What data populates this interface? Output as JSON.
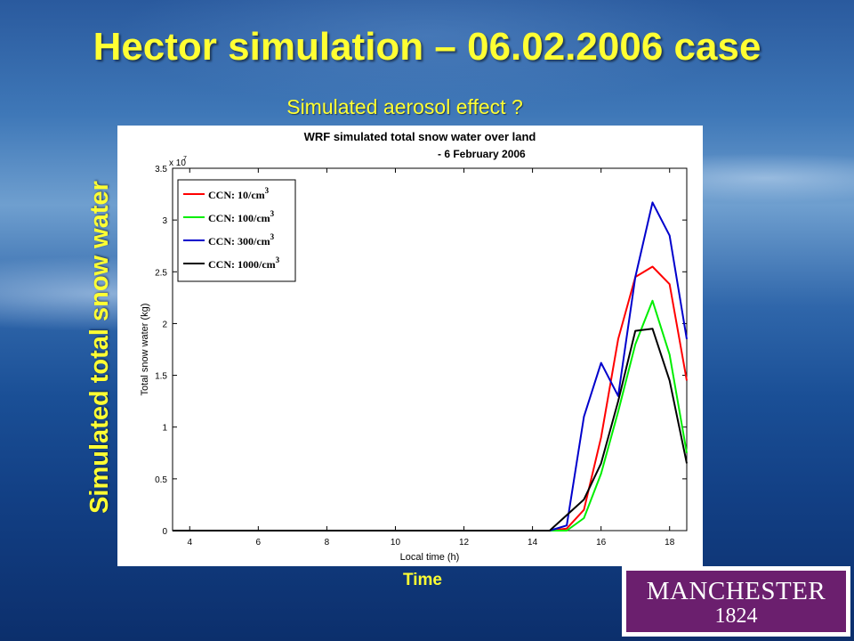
{
  "slide": {
    "title": "Hector simulation – 06.02.2006 case",
    "subtitle": "Simulated aerosol effect ?",
    "ylabel": "Simulated total snow water",
    "xlabel": "Time"
  },
  "logo": {
    "name": "MANCHESTER",
    "year": "1824"
  },
  "chart_data": {
    "type": "line",
    "title": "WRF simulated total snow water over land",
    "subtitle": "- 6 February 2006",
    "xlabel": "Local time (h)",
    "ylabel": "Total snow water (kg)",
    "y_multiplier": "x 10",
    "y_multiplier_exponent": "7",
    "xlim": [
      3.5,
      18.5
    ],
    "ylim": [
      0,
      3.5
    ],
    "xticks": [
      4,
      6,
      8,
      10,
      12,
      14,
      16,
      18
    ],
    "yticks": [
      0,
      0.5,
      1,
      1.5,
      2,
      2.5,
      3,
      3.5
    ],
    "grid": false,
    "legend_position": "top-left",
    "series": [
      {
        "name": "CCN: 10/cm",
        "exponent": "3",
        "color": "#ff0000",
        "x": [
          3.5,
          14.5,
          15,
          15.5,
          16,
          16.5,
          17,
          17.5,
          18,
          18.5
        ],
        "y": [
          0,
          0,
          0.02,
          0.2,
          0.9,
          1.85,
          2.45,
          2.55,
          2.38,
          1.45
        ]
      },
      {
        "name": "CCN: 100/cm",
        "exponent": "3",
        "color": "#00ee00",
        "x": [
          3.5,
          15,
          15.5,
          16,
          16.5,
          17,
          17.5,
          18,
          18.5
        ],
        "y": [
          0,
          0,
          0.12,
          0.55,
          1.15,
          1.8,
          2.22,
          1.7,
          0.75
        ]
      },
      {
        "name": "CCN: 300/cm",
        "exponent": "3",
        "color": "#0000cc",
        "x": [
          3.5,
          14.5,
          15,
          15.5,
          16,
          16.5,
          17,
          17.5,
          18,
          18.5
        ],
        "y": [
          0,
          0,
          0.05,
          1.1,
          1.62,
          1.3,
          2.45,
          3.17,
          2.85,
          1.85
        ]
      },
      {
        "name": "CCN: 1000/cm",
        "exponent": "3",
        "color": "#000000",
        "x": [
          3.5,
          14.5,
          15,
          15.5,
          16,
          16.5,
          17,
          17.5,
          18,
          18.5
        ],
        "y": [
          0,
          0,
          0.15,
          0.3,
          0.65,
          1.25,
          1.93,
          1.95,
          1.45,
          0.65
        ]
      }
    ]
  }
}
